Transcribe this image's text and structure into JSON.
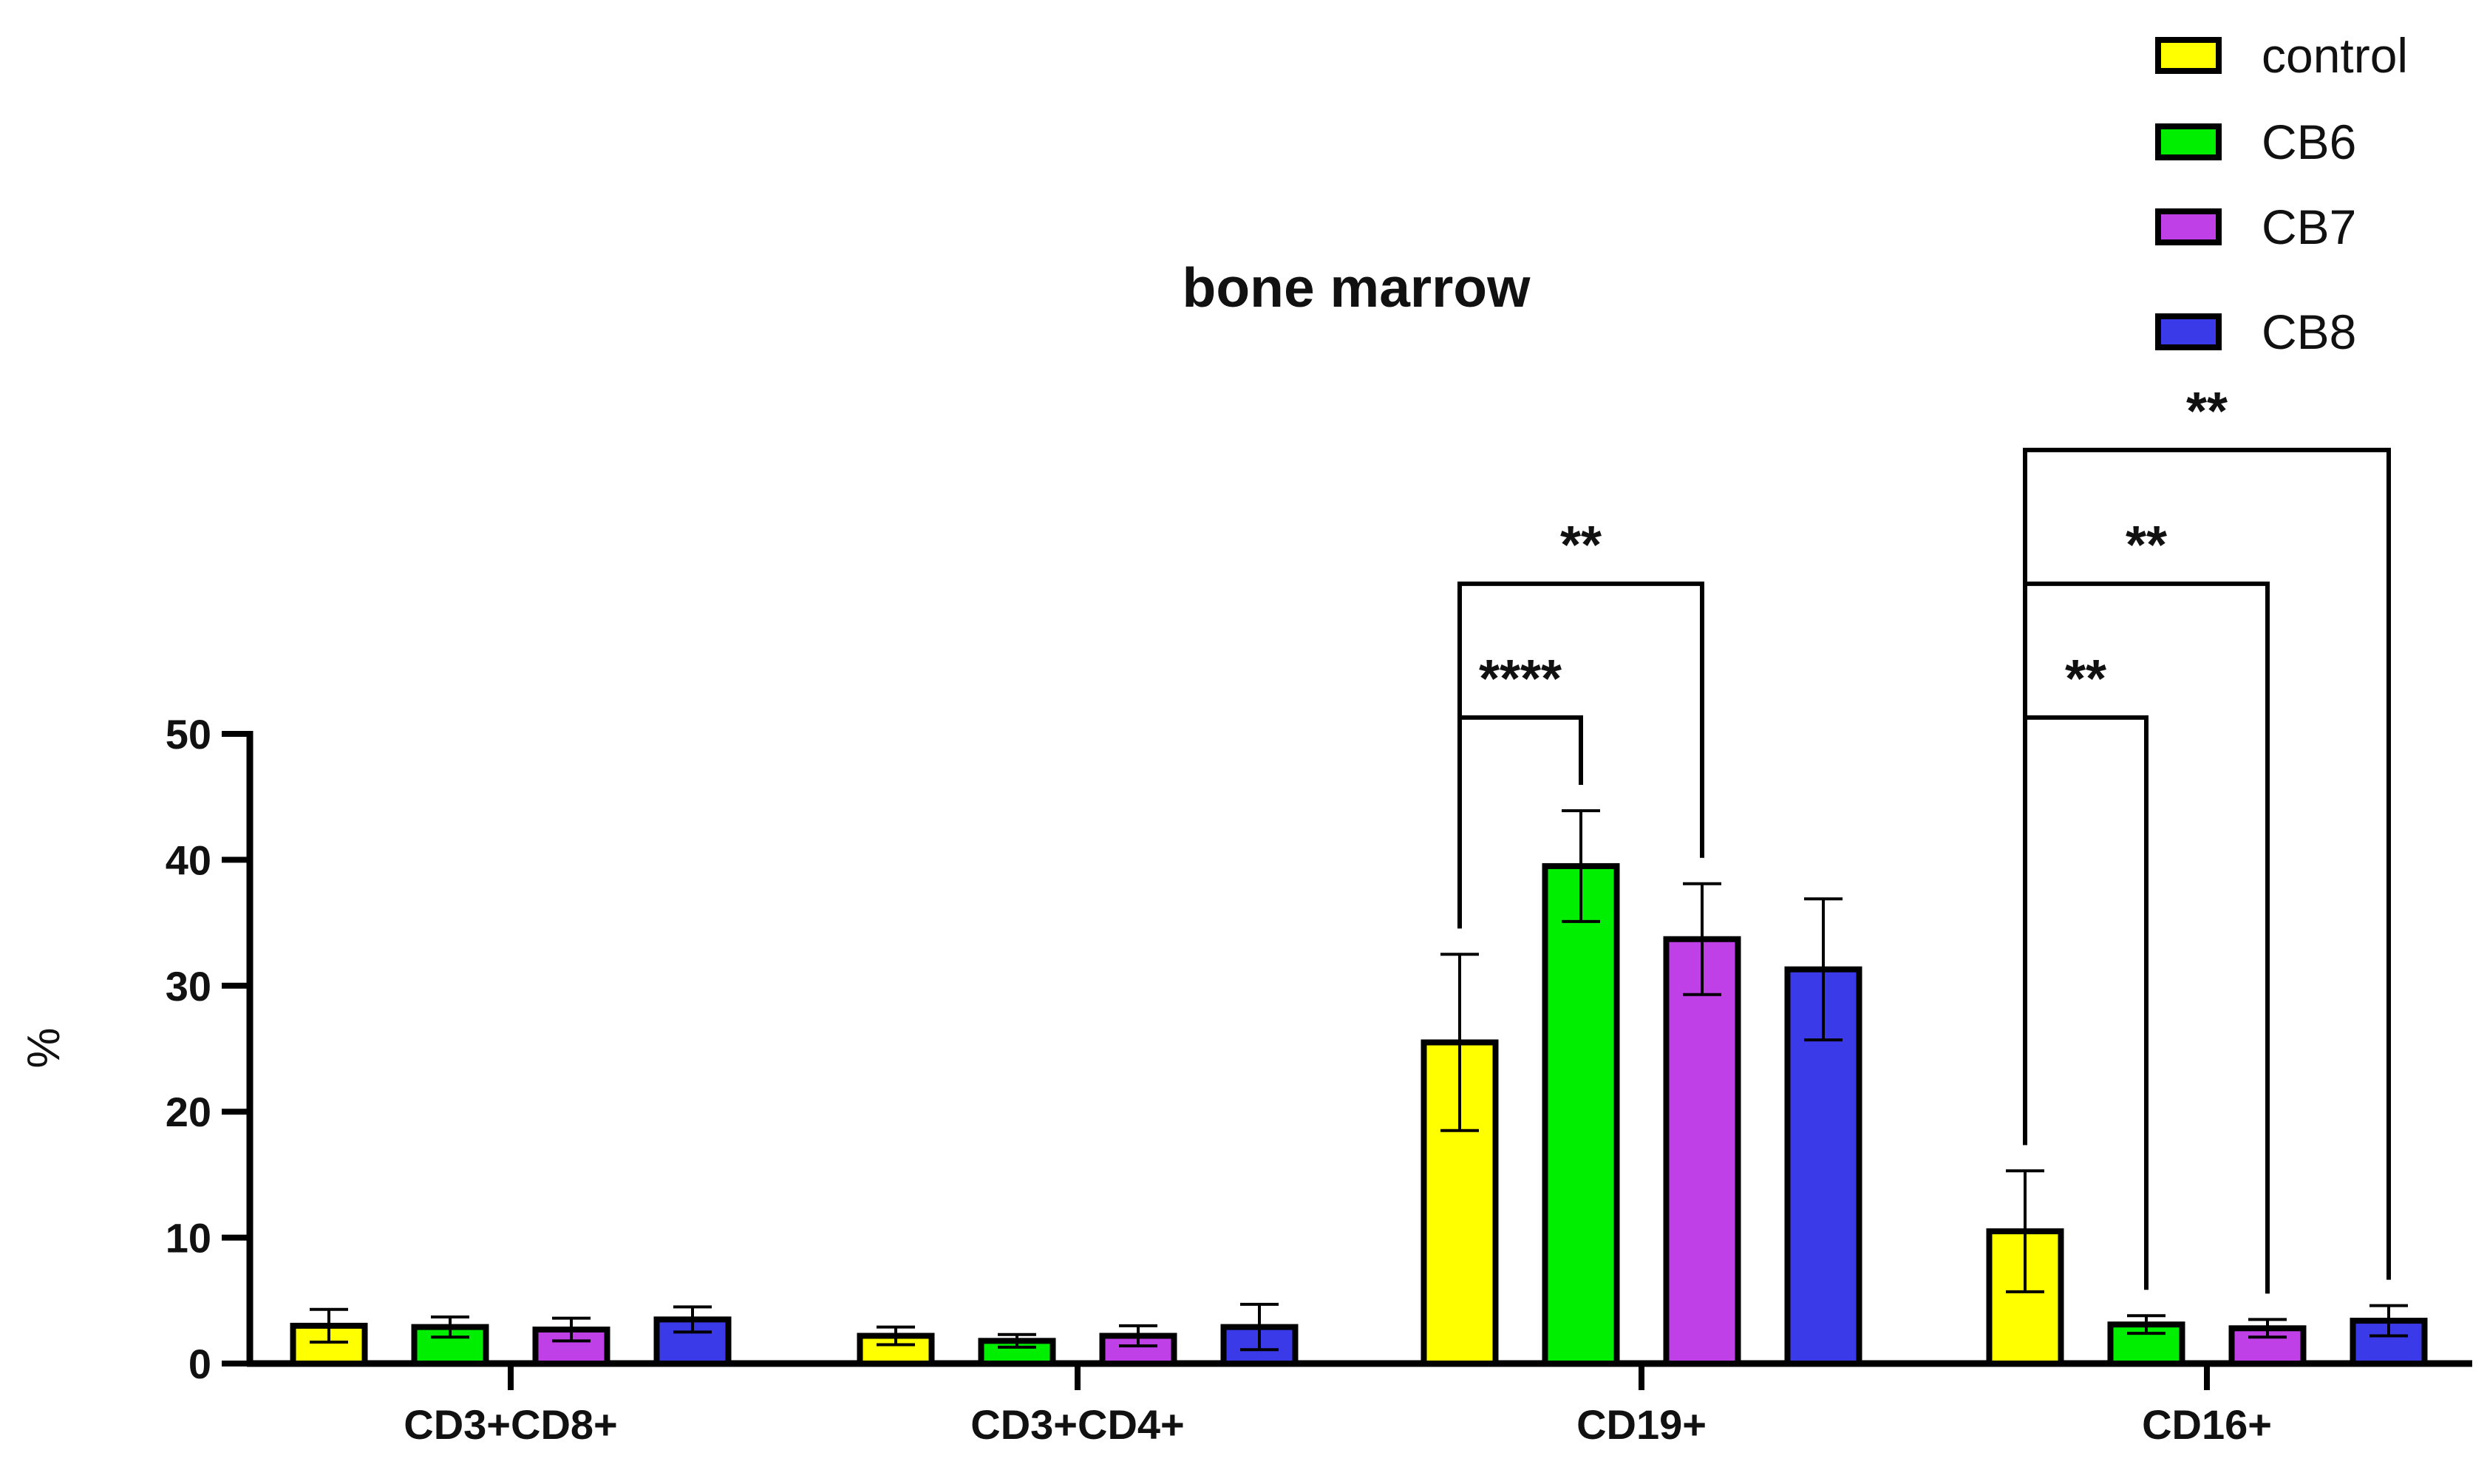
{
  "chart_data": {
    "type": "bar",
    "title": "bone marrow",
    "xlabel": "",
    "ylabel": "%",
    "ylim": [
      0,
      50
    ],
    "yticks": [
      0,
      10,
      20,
      30,
      40,
      50
    ],
    "grid": false,
    "legend_position": "top-right",
    "categories": [
      "CD3+CD8+",
      "CD3+CD4+",
      "CD19+",
      "CD16+"
    ],
    "series": [
      {
        "name": "control",
        "color": "#ffff00",
        "values": [
          3.0,
          2.2,
          25.5,
          10.5
        ],
        "errors": [
          1.3,
          0.7,
          7.0,
          4.8
        ]
      },
      {
        "name": "CB6",
        "color": "#00ee00",
        "values": [
          2.9,
          1.8,
          39.5,
          3.1
        ],
        "errors": [
          0.8,
          0.5,
          4.4,
          0.7
        ]
      },
      {
        "name": "CB7",
        "color": "#c040e8",
        "values": [
          2.7,
          2.2,
          33.7,
          2.8
        ],
        "errors": [
          0.9,
          0.8,
          4.4,
          0.7
        ]
      },
      {
        "name": "CB8",
        "color": "#3a3ae8",
        "values": [
          3.5,
          2.9,
          31.3,
          3.4
        ],
        "errors": [
          1.0,
          1.8,
          5.6,
          1.2
        ]
      }
    ],
    "significance": [
      {
        "category": "CD19+",
        "from": "control",
        "to": "CB6",
        "label": "****"
      },
      {
        "category": "CD19+",
        "from": "control",
        "to": "CB7",
        "label": "**"
      },
      {
        "category": "CD16+",
        "from": "control",
        "to": "CB6",
        "label": "**"
      },
      {
        "category": "CD16+",
        "from": "control",
        "to": "CB7",
        "label": "**"
      },
      {
        "category": "CD16+",
        "from": "control",
        "to": "CB8",
        "label": "**"
      }
    ]
  }
}
